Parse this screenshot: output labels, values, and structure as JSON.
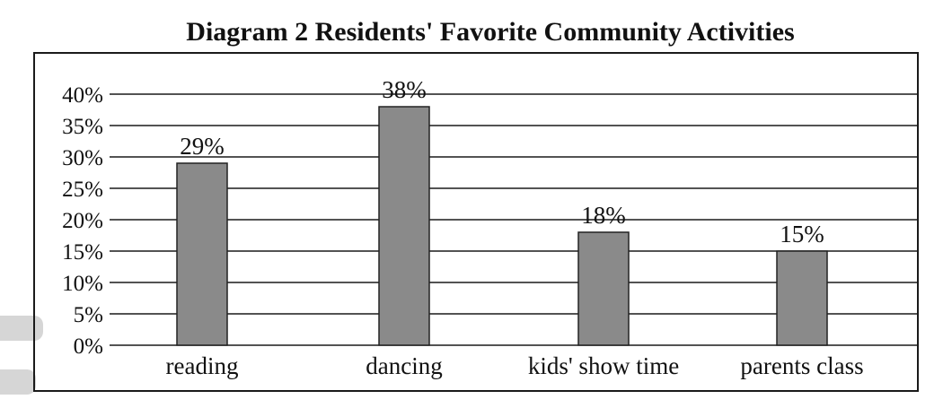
{
  "chart_data": {
    "type": "bar",
    "title": "Diagram 2 Residents' Favorite Community Activities",
    "categories": [
      "reading",
      "dancing",
      "kids' show time",
      "parents class"
    ],
    "values": [
      29,
      38,
      18,
      15
    ],
    "value_labels": [
      "29%",
      "38%",
      "18%",
      "15%"
    ],
    "yticks": [
      "0%",
      "5%",
      "10%",
      "15%",
      "20%",
      "25%",
      "30%",
      "35%",
      "40%"
    ],
    "ylim": [
      0,
      40
    ],
    "grid": true,
    "bar_color": "#8a8a8a"
  }
}
